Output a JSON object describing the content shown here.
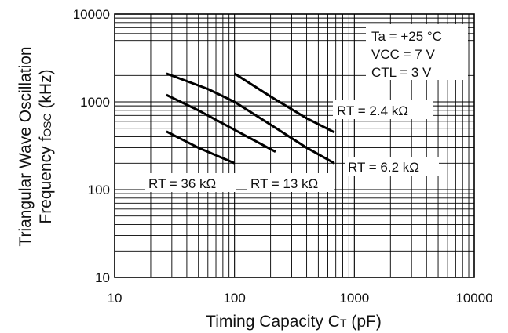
{
  "chart_data": {
    "type": "line",
    "x_scale": "log",
    "y_scale": "log",
    "xlim": [
      10,
      10000
    ],
    "ylim": [
      10,
      10000
    ],
    "x_ticks": [
      "10",
      "100",
      "1000",
      "10000"
    ],
    "y_ticks": [
      "10",
      "100",
      "1000",
      "10000"
    ],
    "xlabel": {
      "main": "Timing Capacity C",
      "sub": "T",
      "unit": " (pF)"
    },
    "ylabel": {
      "line1": "Triangular Wave Oscillation",
      "line2_main": "Frequency f",
      "line2_sub": "OSC",
      "line2_unit": " (kHz)"
    },
    "grid": true,
    "conditions": [
      "Ta = +25 °C",
      "VCC = 7 V",
      "CTL = 3 V"
    ],
    "series": [
      {
        "name": "RT = 2.4 kΩ",
        "x": [
          100,
          200,
          400,
          680
        ],
        "y": [
          2100,
          1150,
          650,
          450
        ]
      },
      {
        "name": "RT = 6.2 kΩ",
        "x": [
          27,
          60,
          100,
          200,
          400,
          680
        ],
        "y": [
          2100,
          1400,
          1000,
          550,
          300,
          200
        ]
      },
      {
        "name": "RT = 13 kΩ",
        "x": [
          27,
          50,
          100,
          220
        ],
        "y": [
          1200,
          800,
          480,
          270
        ]
      },
      {
        "name": "RT = 36 kΩ",
        "x": [
          27,
          50,
          100
        ],
        "y": [
          460,
          300,
          200
        ]
      }
    ]
  }
}
